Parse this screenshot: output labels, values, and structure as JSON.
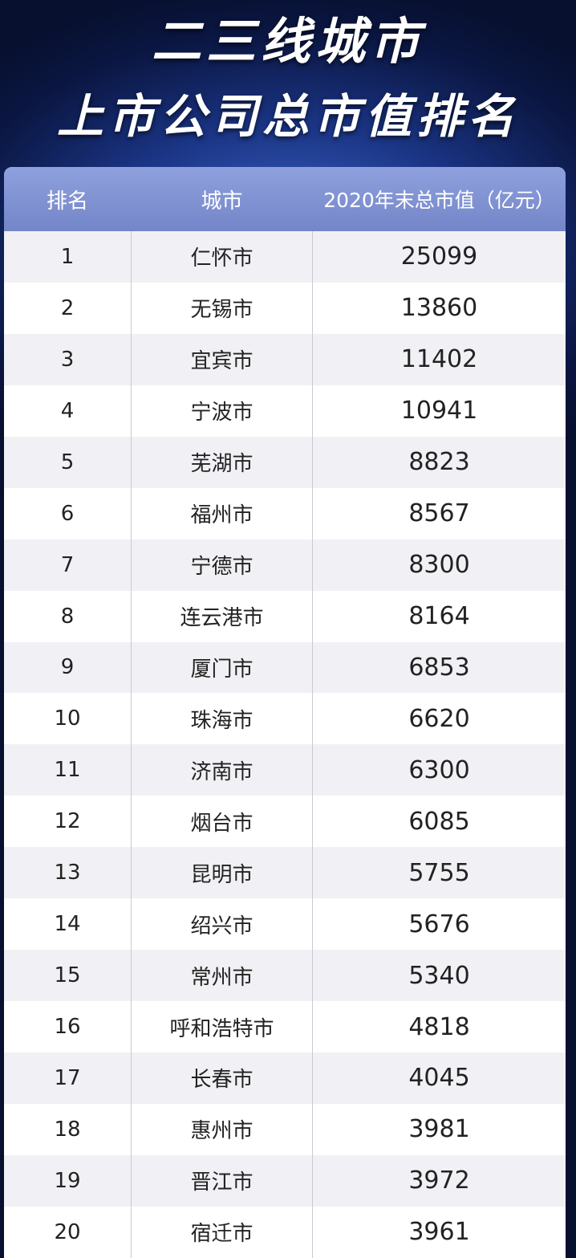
{
  "header": {
    "title_line1": "二三线城市",
    "title_line2": "上市公司总市值排名"
  },
  "table": {
    "columns": [
      "排名",
      "城市",
      "2020年末总市值（亿元）"
    ],
    "rows": [
      [
        1,
        "仁怀市",
        25099
      ],
      [
        2,
        "无锡市",
        13860
      ],
      [
        3,
        "宜宾市",
        11402
      ],
      [
        4,
        "宁波市",
        10941
      ],
      [
        5,
        "芜湖市",
        8823
      ],
      [
        6,
        "福州市",
        8567
      ],
      [
        7,
        "宁德市",
        8300
      ],
      [
        8,
        "连云港市",
        8164
      ],
      [
        9,
        "厦门市",
        6853
      ],
      [
        10,
        "珠海市",
        6620
      ],
      [
        11,
        "济南市",
        6300
      ],
      [
        12,
        "烟台市",
        6085
      ],
      [
        13,
        "昆明市",
        5755
      ],
      [
        14,
        "绍兴市",
        5676
      ],
      [
        15,
        "常州市",
        5340
      ],
      [
        16,
        "呼和浩特市",
        4818
      ],
      [
        17,
        "长春市",
        4045
      ],
      [
        18,
        "惠州市",
        3981
      ],
      [
        19,
        "晋江市",
        3972
      ],
      [
        20,
        "宿迁市",
        3961
      ]
    ]
  }
}
